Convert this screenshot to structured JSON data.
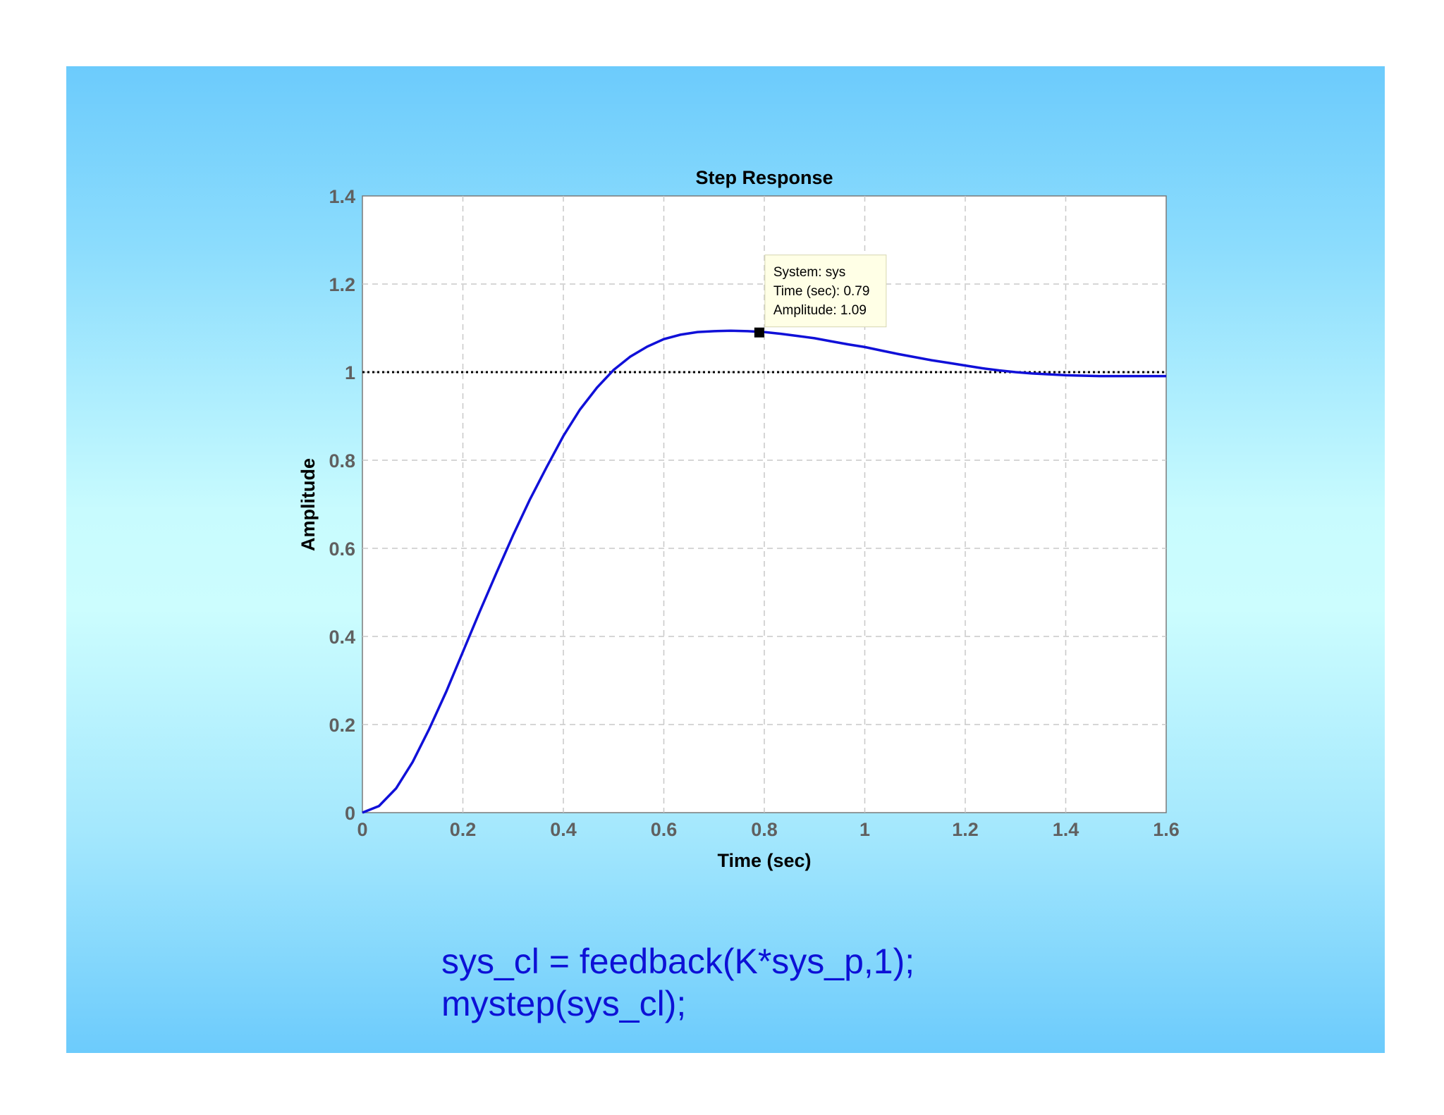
{
  "chart_data": {
    "type": "line",
    "title": "Step Response",
    "xlabel": "Time (sec)",
    "ylabel": "Amplitude",
    "xlim": [
      0,
      1.6
    ],
    "ylim": [
      0,
      1.4
    ],
    "x_ticks": [
      "0",
      "0.2",
      "0.4",
      "0.6",
      "0.8",
      "1",
      "1.2",
      "1.4",
      "1.6"
    ],
    "y_ticks": [
      "0",
      "0.2",
      "0.4",
      "0.6",
      "0.8",
      "1",
      "1.2",
      "1.4"
    ],
    "grid": true,
    "series": [
      {
        "color": "#1010d8",
        "x": [
          0,
          0.033,
          0.067,
          0.1,
          0.133,
          0.167,
          0.2,
          0.233,
          0.267,
          0.3,
          0.333,
          0.367,
          0.4,
          0.433,
          0.467,
          0.5,
          0.533,
          0.567,
          0.6,
          0.633,
          0.667,
          0.7,
          0.733,
          0.767,
          0.8,
          0.833,
          0.867,
          0.9,
          0.933,
          0.967,
          1.0,
          1.033,
          1.067,
          1.1,
          1.133,
          1.167,
          1.2,
          1.233,
          1.267,
          1.3,
          1.333,
          1.367,
          1.4,
          1.433,
          1.467,
          1.5,
          1.533,
          1.567,
          1.6
        ],
        "y": [
          0,
          0.015,
          0.055,
          0.115,
          0.19,
          0.275,
          0.365,
          0.455,
          0.545,
          0.63,
          0.71,
          0.785,
          0.855,
          0.915,
          0.965,
          1.005,
          1.035,
          1.058,
          1.075,
          1.085,
          1.091,
          1.093,
          1.094,
          1.093,
          1.091,
          1.087,
          1.082,
          1.077,
          1.07,
          1.063,
          1.057,
          1.049,
          1.041,
          1.034,
          1.027,
          1.021,
          1.015,
          1.009,
          1.004,
          1.0,
          0.997,
          0.995,
          0.993,
          0.992,
          0.991,
          0.991,
          0.991,
          0.991,
          0.991
        ]
      }
    ],
    "reference_line": {
      "y": 1,
      "style": "dotted",
      "color": "#000000"
    },
    "datatip": {
      "x": 0.79,
      "y": 1.09,
      "lines": [
        "System: sys",
        "Time (sec): 0.79",
        "Amplitude: 1.09"
      ]
    }
  },
  "code": {
    "line1": "sys_cl = feedback(K*sys_p,1);",
    "line2": "mystep(sys_cl);"
  }
}
